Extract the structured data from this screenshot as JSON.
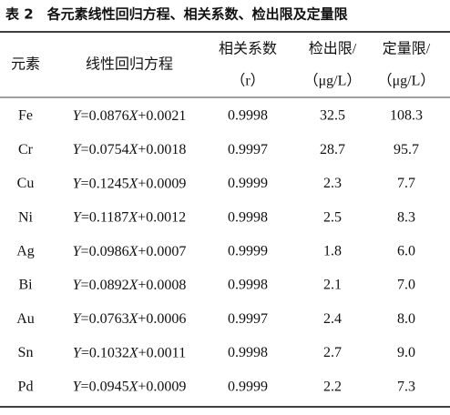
{
  "table": {
    "title": "表 2　各元素线性回归方程、相关系数、检出限及定量限",
    "header": [
      [
        "元素"
      ],
      [
        "线性回归方程"
      ],
      [
        "相关系数",
        "（r）"
      ],
      [
        "检出限/",
        "（μg/L）"
      ],
      [
        "定量限/",
        "（μg/L）"
      ]
    ],
    "rows": [
      [
        "Fe",
        "Y=0.0876X+0.0021",
        "0.9998",
        "32.5",
        "108.3"
      ],
      [
        "Cr",
        "Y=0.0754X+0.0018",
        "0.9997",
        "28.7",
        "95.7"
      ],
      [
        "Cu",
        "Y=0.1245X+0.0009",
        "0.9999",
        "2.3",
        "7.7"
      ],
      [
        "Ni",
        "Y=0.1187X+0.0012",
        "0.9998",
        "2.5",
        "8.3"
      ],
      [
        "Ag",
        "Y=0.0986X+0.0007",
        "0.9999",
        "1.8",
        "6.0"
      ],
      [
        "Bi",
        "Y=0.0892X+0.0008",
        "0.9998",
        "2.1",
        "7.0"
      ],
      [
        "Au",
        "Y=0.0763X+0.0006",
        "0.9997",
        "2.4",
        "8.0"
      ],
      [
        "Sn",
        "Y=0.1032X+0.0011",
        "0.9998",
        "2.7",
        "9.0"
      ],
      [
        "Pd",
        "Y=0.0945X+0.0009",
        "0.9999",
        "2.2",
        "7.3"
      ]
    ]
  }
}
